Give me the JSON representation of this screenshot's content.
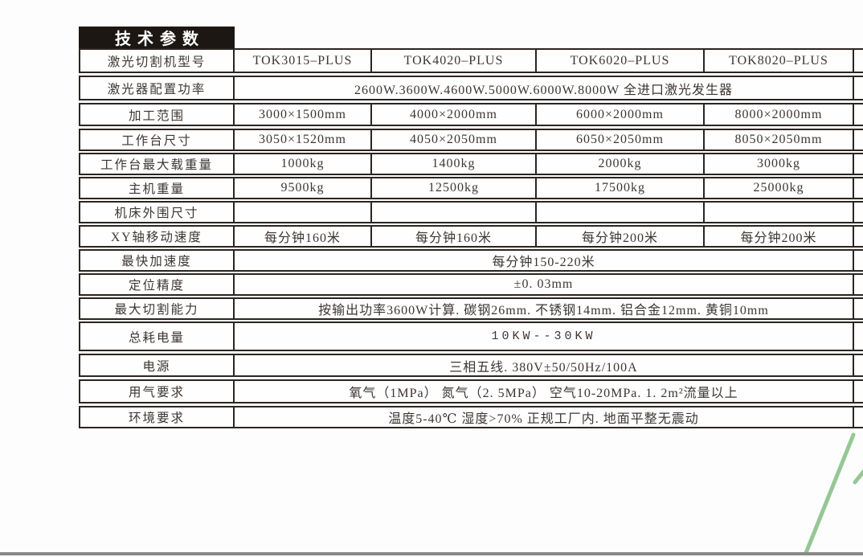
{
  "page": {
    "title_tab": "技术参数",
    "accent_green": "#95c795",
    "bottom_bar_color": "#898989",
    "border_color": "#2b2521"
  },
  "table": {
    "rows": [
      {
        "label": "激光切割机型号",
        "cells": [
          "TOK3015–PLUS",
          "TOK4020–PLUS",
          "TOK6020–PLUS",
          "TOK8020–PLUS"
        ]
      },
      {
        "label": "激光器配置功率",
        "merged": "2600W.3600W.4600W.5000W.6000W.8000W 全进口激光发生器"
      },
      {
        "label": "加工范围",
        "cells": [
          "3000×1500mm",
          "4000×2000mm",
          "6000×2000mm",
          "8000×2000mm"
        ]
      },
      {
        "label": "工作台尺寸",
        "cells": [
          "3050×1520mm",
          "4050×2050mm",
          "6050×2050mm",
          "8050×2050mm"
        ]
      },
      {
        "label": "工作台最大载重量",
        "cells": [
          "1000kg",
          "1400kg",
          "2000kg",
          "3000kg"
        ]
      },
      {
        "label": "主机重量",
        "cells": [
          "9500kg",
          "12500kg",
          "17500kg",
          "25000kg"
        ]
      },
      {
        "label": "机床外围尺寸",
        "cells": [
          "",
          "",
          "",
          ""
        ]
      },
      {
        "label": "XY轴移动速度",
        "cells": [
          "每分钟160米",
          "每分钟160米",
          "每分钟200米",
          "每分钟200米"
        ]
      },
      {
        "label": "最快加速度",
        "merged": "每分钟150-220米"
      },
      {
        "label": "定位精度",
        "merged": "±0. 03mm"
      },
      {
        "label": "最大切割能力",
        "merged": "按输出功率3600W计算.  碳钢26mm. 不锈钢14mm. 铝合金12mm. 黄铜10mm"
      },
      {
        "label": "总耗电量",
        "merged": "10KW--30KW",
        "spaced": true
      },
      {
        "label": "电源",
        "merged": "三相五线. 380V±50/50Hz/100A"
      },
      {
        "label": "用气要求",
        "merged": "氧气（1MPa）   氮气（2. 5MPa）    空气10-20MPa. 1. 2m²流量以上"
      },
      {
        "label": "环境要求",
        "merged": "温度5-40℃   湿度>70%   正规工厂内. 地面平整无震动"
      }
    ]
  }
}
